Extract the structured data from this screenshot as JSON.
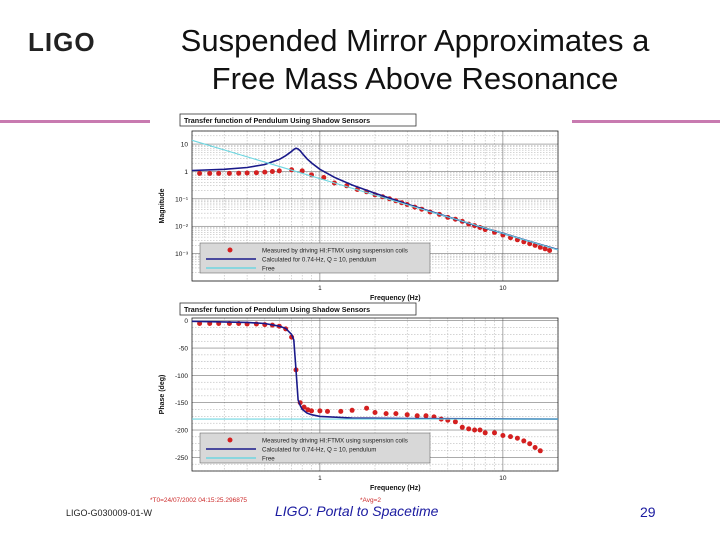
{
  "slide": {
    "logo_text": "LIGO",
    "title_line1": "Suspended Mirror Approximates a",
    "title_line2": "Free Mass Above Resonance",
    "footer_id": "LIGO-G030009-01-W",
    "footer_center": "LIGO: Portal to Spacetime",
    "page_number": "29",
    "timestamp": "*T0=24/07/2002 04:15:25.296875",
    "avg": "*Avg=2",
    "accent_color": "#c87ab0"
  },
  "chart_data": [
    {
      "type": "line",
      "title": "Transfer function of Pendulum Using Shadow Sensors",
      "xlabel": "Frequency (Hz)",
      "ylabel": "Magnitude",
      "xscale": "log",
      "yscale": "log",
      "xlim": [
        0.2,
        20
      ],
      "ylim": [
        0.0001,
        30
      ],
      "x_ticks": [
        {
          "v": 1,
          "label": "1"
        },
        {
          "v": 10,
          "label": "10"
        }
      ],
      "y_ticks": [
        {
          "v": 10,
          "label": "10"
        },
        {
          "v": 1,
          "label": "1"
        },
        {
          "v": 0.1,
          "label": "10⁻¹"
        },
        {
          "v": 0.01,
          "label": "10⁻²"
        },
        {
          "v": 0.001,
          "label": "10⁻³"
        }
      ],
      "grid": true,
      "legend_position": "bottom-left",
      "series": [
        {
          "name": "Measured by driving HI:FTMX using suspension coils",
          "style": "points",
          "color": "#d42020",
          "x": [
            0.22,
            0.25,
            0.28,
            0.32,
            0.36,
            0.4,
            0.45,
            0.5,
            0.55,
            0.6,
            0.7,
            0.8,
            0.9,
            1.05,
            1.2,
            1.4,
            1.6,
            1.8,
            2.0,
            2.2,
            2.4,
            2.6,
            2.8,
            3.0,
            3.3,
            3.6,
            4.0,
            4.5,
            5.0,
            5.5,
            6.0,
            6.5,
            7.0,
            7.5,
            8,
            9,
            10,
            11,
            12,
            13,
            14,
            15,
            16,
            17,
            18
          ],
          "y": [
            0.85,
            0.85,
            0.85,
            0.85,
            0.86,
            0.88,
            0.9,
            0.95,
            1.0,
            1.05,
            1.15,
            1.05,
            0.75,
            0.6,
            0.38,
            0.3,
            0.22,
            0.18,
            0.14,
            0.12,
            0.1,
            0.085,
            0.072,
            0.062,
            0.05,
            0.042,
            0.033,
            0.027,
            0.021,
            0.018,
            0.015,
            0.012,
            0.0105,
            0.009,
            0.0075,
            0.006,
            0.0048,
            0.0038,
            0.0032,
            0.0027,
            0.0023,
            0.002,
            0.0017,
            0.0015,
            0.0013
          ]
        },
        {
          "name": "Calculated for 0.74-Hz, Q = 10, pendulum",
          "style": "line",
          "color": "#1a1a8a",
          "x": [
            0.2,
            0.3,
            0.4,
            0.5,
            0.6,
            0.65,
            0.7,
            0.72,
            0.74,
            0.76,
            0.78,
            0.8,
            0.85,
            0.9,
            1.0,
            1.2,
            1.5,
            2,
            3,
            4,
            5,
            7,
            10,
            14,
            20
          ],
          "y": [
            1.08,
            1.2,
            1.4,
            1.8,
            2.75,
            3.75,
            5.4,
            6.4,
            7.0,
            6.6,
            5.7,
            4.6,
            2.9,
            2.05,
            1.2,
            0.61,
            0.32,
            0.16,
            0.064,
            0.035,
            0.022,
            0.011,
            0.0055,
            0.0028,
            0.0014
          ]
        },
        {
          "name": "Free",
          "style": "line",
          "color": "#6fd6e0",
          "x": [
            0.2,
            20
          ],
          "y": [
            13.7,
            0.00137
          ]
        }
      ]
    },
    {
      "type": "line",
      "title": "Transfer function of Pendulum Using Shadow Sensors",
      "xlabel": "Frequency (Hz)",
      "ylabel": "Phase (deg)",
      "xscale": "log",
      "yscale": "linear",
      "xlim": [
        0.2,
        20
      ],
      "ylim": [
        -275,
        5
      ],
      "x_ticks": [
        {
          "v": 1,
          "label": "1"
        },
        {
          "v": 10,
          "label": "10"
        }
      ],
      "y_ticks": [
        {
          "v": 0,
          "label": "0"
        },
        {
          "v": -50,
          "label": "-50"
        },
        {
          "v": -100,
          "label": "-100"
        },
        {
          "v": -150,
          "label": "-150"
        },
        {
          "v": -200,
          "label": "-200"
        },
        {
          "v": -250,
          "label": "-250"
        }
      ],
      "grid": true,
      "legend_position": "bottom-left",
      "series": [
        {
          "name": "Measured by driving HI:FTMX using suspension coils",
          "style": "points",
          "color": "#d42020",
          "x": [
            0.22,
            0.25,
            0.28,
            0.32,
            0.36,
            0.4,
            0.45,
            0.5,
            0.55,
            0.6,
            0.65,
            0.7,
            0.74,
            0.78,
            0.82,
            0.86,
            0.9,
            1.0,
            1.1,
            1.3,
            1.5,
            1.8,
            2.0,
            2.3,
            2.6,
            3.0,
            3.4,
            3.8,
            4.2,
            4.6,
            5.0,
            5.5,
            6,
            6.5,
            7,
            7.5,
            8,
            9,
            10,
            11,
            12,
            13,
            14,
            15,
            16
          ],
          "y": [
            -5,
            -5,
            -5,
            -5,
            -5,
            -6,
            -6,
            -7,
            -8,
            -10,
            -15,
            -30,
            -90,
            -150,
            -158,
            -163,
            -165,
            -165,
            -166,
            -166,
            -164,
            -160,
            -168,
            -170,
            -170,
            -172,
            -174,
            -174,
            -176,
            -180,
            -182,
            -185,
            -195,
            -198,
            -200,
            -200,
            -205,
            -205,
            -210,
            -212,
            -215,
            -220,
            -225,
            -232,
            -238
          ]
        },
        {
          "name": "Calculated for 0.74-Hz, Q = 10, pendulum",
          "style": "line",
          "color": "#1a1a8a",
          "x": [
            0.2,
            0.4,
            0.5,
            0.6,
            0.65,
            0.7,
            0.72,
            0.74,
            0.76,
            0.78,
            0.8,
            0.85,
            0.9,
            1.0,
            1.5,
            3,
            20
          ],
          "y": [
            -1,
            -3,
            -5,
            -10,
            -14,
            -25,
            -35,
            -90,
            -145,
            -155,
            -162,
            -169,
            -172,
            -175,
            -178,
            -179,
            -180
          ]
        },
        {
          "name": "Free",
          "style": "line",
          "color": "#6fd6e0",
          "x": [
            0.2,
            20
          ],
          "y": [
            -180,
            -180
          ]
        }
      ]
    }
  ]
}
